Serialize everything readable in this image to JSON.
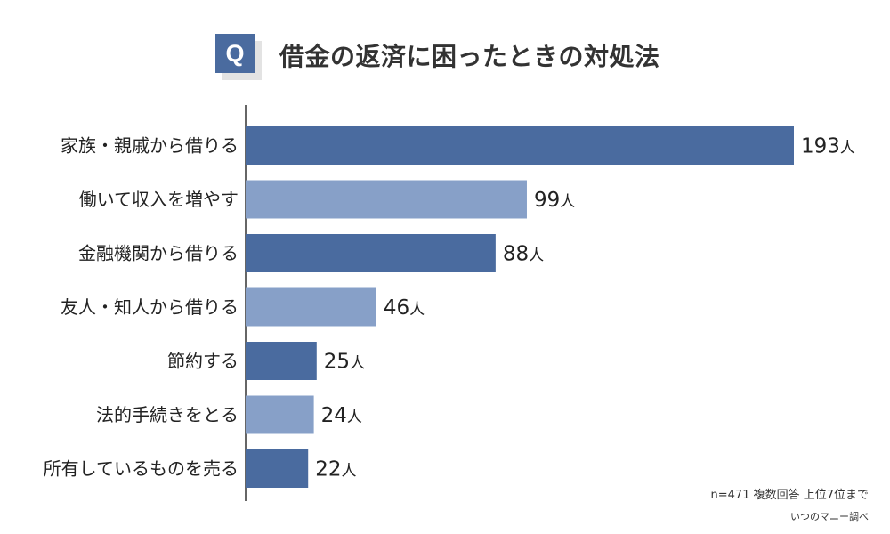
{
  "header": {
    "badge": "Q",
    "title": "借金の返済に困ったときの対処法"
  },
  "chart_data": {
    "type": "bar",
    "orientation": "horizontal",
    "categories": [
      "家族・親戚から借りる",
      "働いて収入を増やす",
      "金融機関から借りる",
      "友人・知人から借りる",
      "節約する",
      "法的手続きをとる",
      "所有しているものを売る"
    ],
    "values": [
      193,
      99,
      88,
      46,
      25,
      24,
      22
    ],
    "value_unit": "人",
    "colors": [
      "#4a6b9f",
      "#87a0c8",
      "#4a6b9f",
      "#87a0c8",
      "#4a6b9f",
      "#87a0c8",
      "#4a6b9f"
    ],
    "grid": false,
    "legend": "none"
  },
  "footer": {
    "note": "n=471 複数回答 上位7位まで",
    "source": "いつのマニー調べ"
  }
}
